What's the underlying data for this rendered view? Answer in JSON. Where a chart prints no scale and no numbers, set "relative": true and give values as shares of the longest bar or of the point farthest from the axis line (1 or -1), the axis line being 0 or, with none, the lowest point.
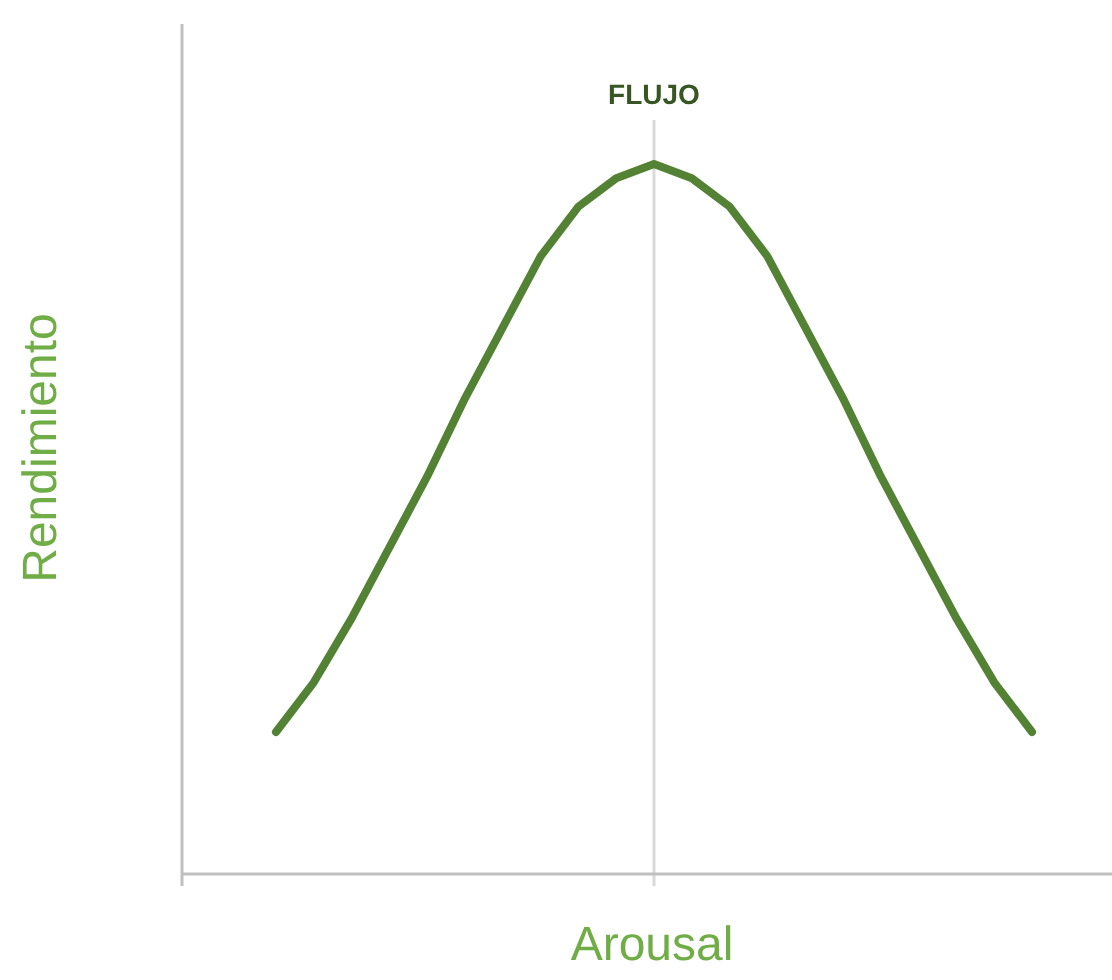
{
  "chart_data": {
    "type": "line",
    "relative": true,
    "xlabel": "Arousal",
    "ylabel": "Rendimiento",
    "categories": [
      null,
      null,
      null,
      null,
      null,
      null,
      null,
      null,
      null,
      null,
      null,
      null,
      null,
      null,
      null,
      null,
      null,
      null,
      null,
      null,
      null
    ],
    "series": [
      {
        "color": "#548235",
        "values": [
          0.2,
          0.27,
          0.36,
          0.46,
          0.56,
          0.67,
          0.77,
          0.87,
          0.94,
          0.98,
          1,
          0.98,
          0.94,
          0.87,
          0.77,
          0.67,
          0.56,
          0.46,
          0.36,
          0.27,
          0.2
        ]
      }
    ],
    "ref_lines": [
      {
        "axis": "x",
        "label": "FLUJO",
        "color": "#d9d9d9"
      }
    ]
  }
}
